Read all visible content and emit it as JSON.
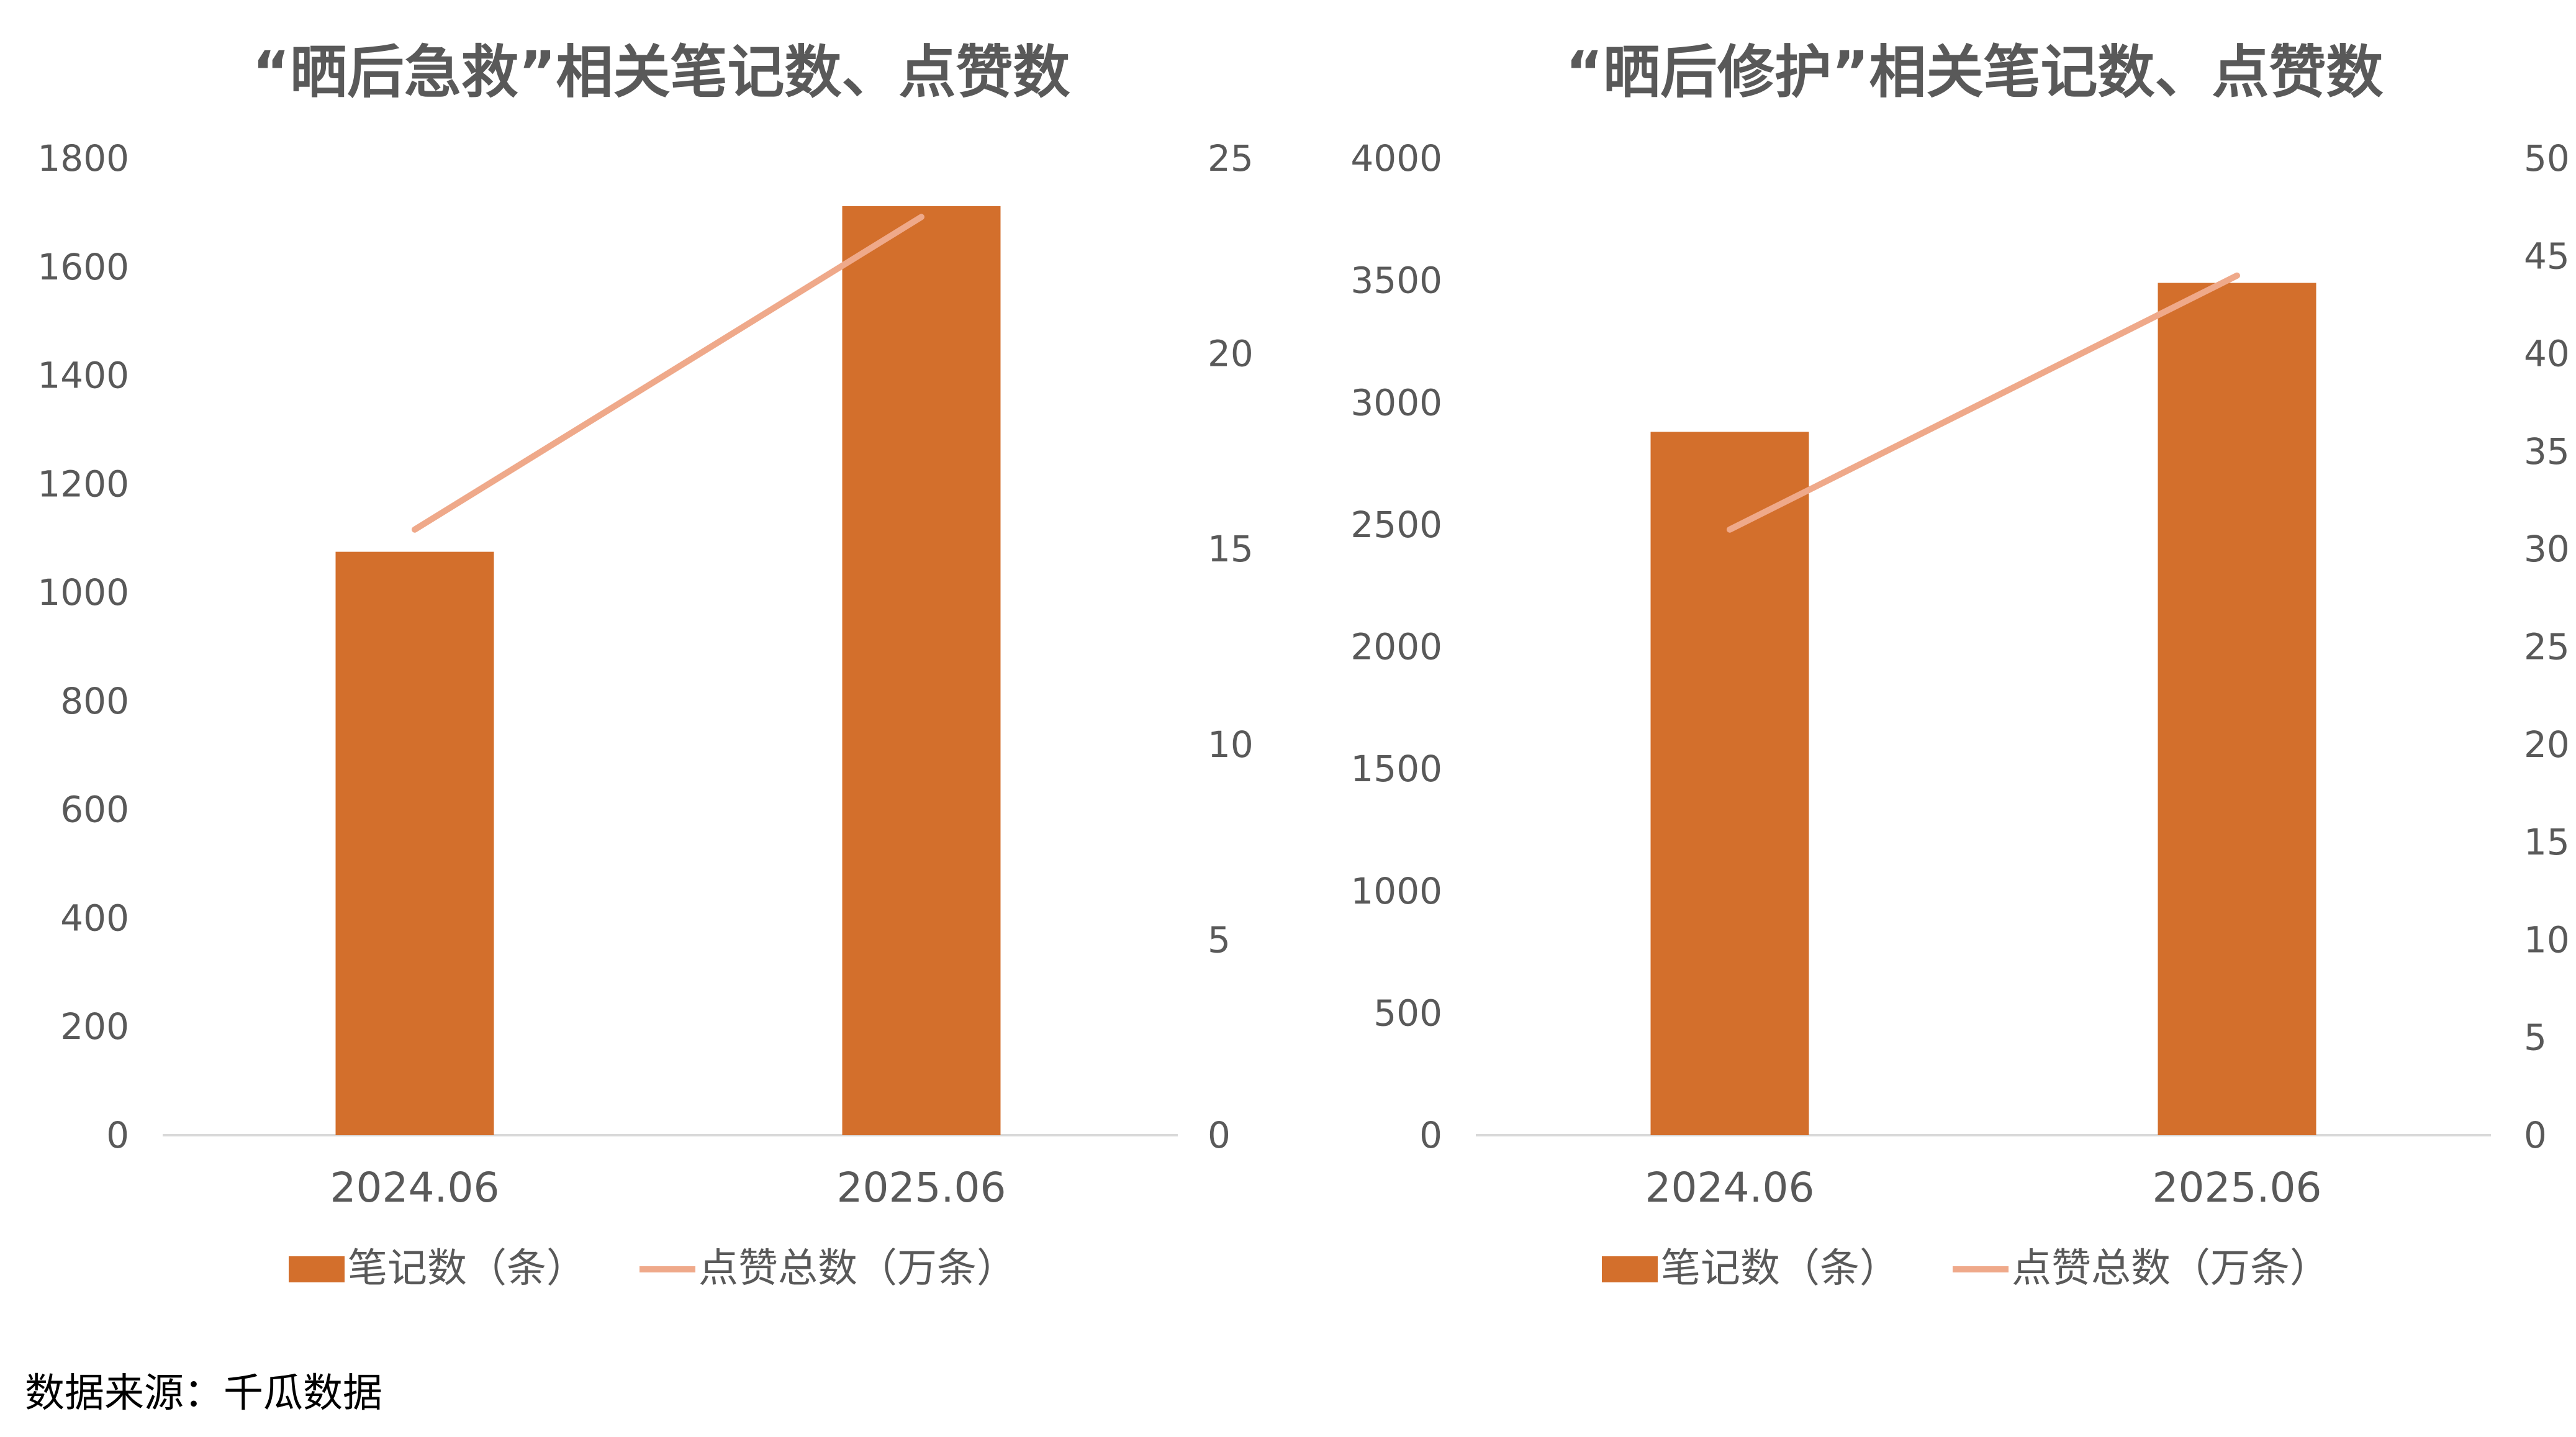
{
  "colors": {
    "bar": "#D36F2C",
    "line": "#EFA98A",
    "axis": "#D9D9D9",
    "text": "#595959"
  },
  "legend": {
    "bar_label": "笔记数（条）",
    "line_label": "点赞总数（万条）"
  },
  "source": "数据来源：千瓜数据",
  "chart_data": [
    {
      "type": "bar",
      "title": "“晒后急救”相关笔记数、点赞数",
      "categories": [
        "2024.06",
        "2025.06"
      ],
      "series": [
        {
          "name": "笔记数（条）",
          "type": "bar",
          "axis": "left",
          "values": [
            1075,
            1712
          ]
        },
        {
          "name": "点赞总数（万条）",
          "type": "line",
          "axis": "right",
          "values": [
            15.5,
            23.5
          ]
        }
      ],
      "y_left": {
        "min": 0,
        "max": 1800,
        "ticks": [
          "0",
          "200",
          "400",
          "600",
          "800",
          "1000",
          "1200",
          "1400",
          "1600",
          "1800"
        ]
      },
      "y_right": {
        "min": 0,
        "max": 25,
        "ticks": [
          "0",
          "5",
          "10",
          "15",
          "20",
          "25"
        ]
      },
      "legend_position": "bottom",
      "grid": false
    },
    {
      "type": "bar",
      "title": "“晒后修护”相关笔记数、点赞数",
      "categories": [
        "2024.06",
        "2025.06"
      ],
      "series": [
        {
          "name": "笔记数（条）",
          "type": "bar",
          "axis": "left",
          "values": [
            2880,
            3490
          ]
        },
        {
          "name": "点赞总数（万条）",
          "type": "line",
          "axis": "right",
          "values": [
            31,
            44
          ]
        }
      ],
      "y_left": {
        "min": 0,
        "max": 4000,
        "ticks": [
          "0",
          "500",
          "1000",
          "1500",
          "2000",
          "2500",
          "3000",
          "3500",
          "4000"
        ]
      },
      "y_right": {
        "min": 0,
        "max": 50,
        "ticks": [
          "0",
          "5",
          "10",
          "15",
          "20",
          "25",
          "30",
          "35",
          "40",
          "45",
          "50"
        ]
      },
      "legend_position": "bottom",
      "grid": false
    }
  ]
}
